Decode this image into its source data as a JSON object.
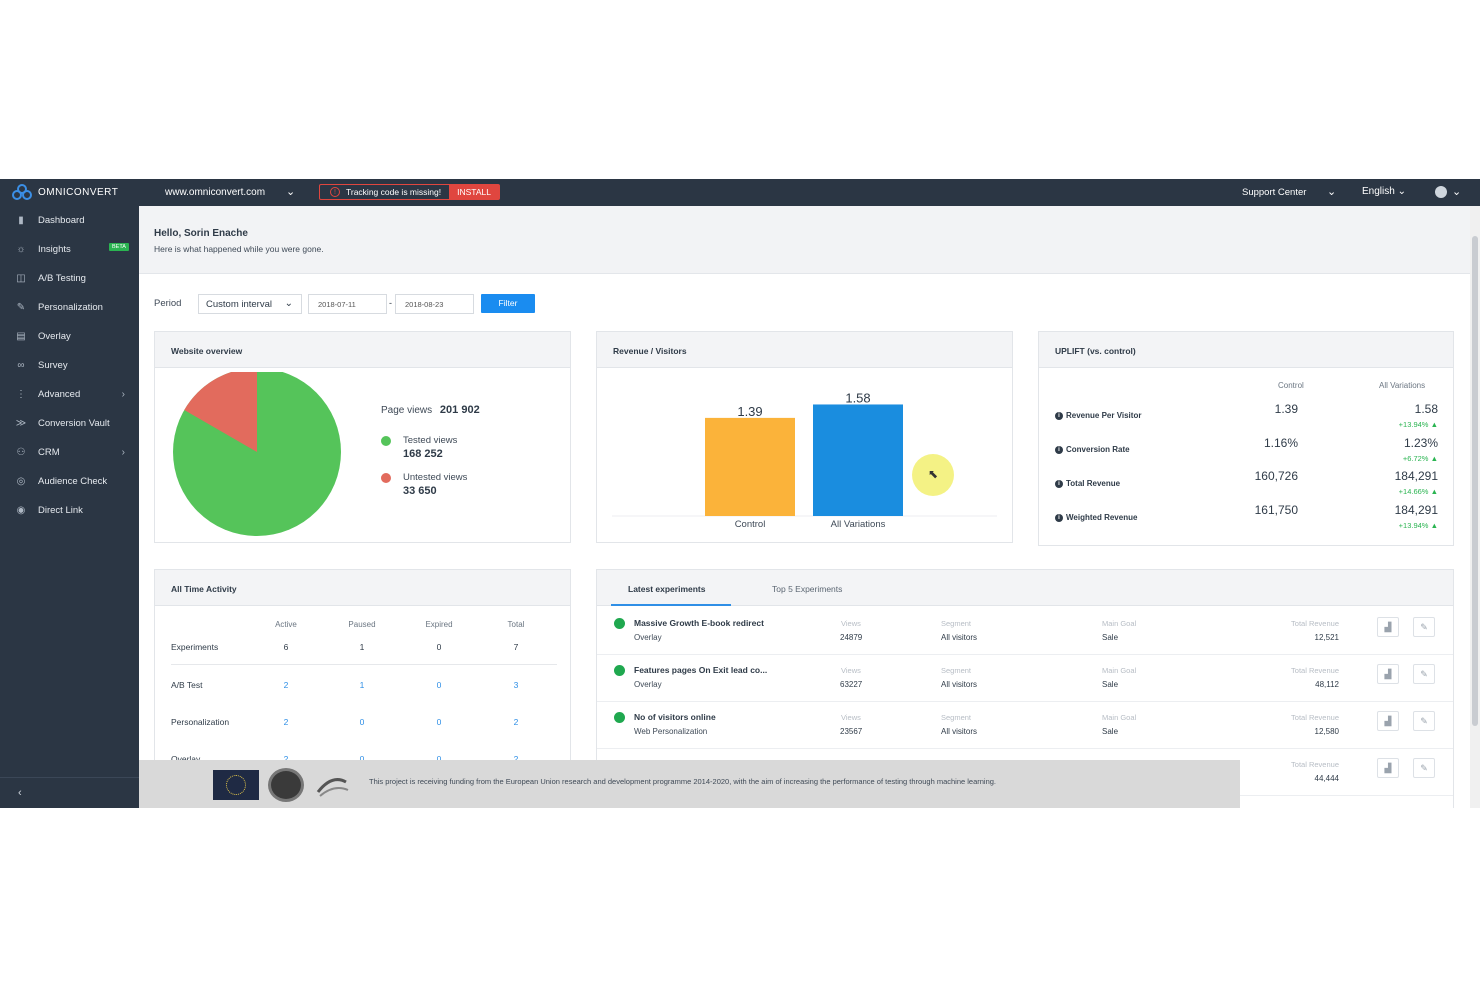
{
  "topbar": {
    "brand": "OMNICONVERT",
    "site": "www.omniconvert.com",
    "tracking_warning": "Tracking code is missing!",
    "install_label": "INSTALL",
    "support": "Support Center",
    "language": "English"
  },
  "sidebar": {
    "items": [
      {
        "label": "Dashboard",
        "icon": "bar-chart-icon"
      },
      {
        "label": "Insights",
        "icon": "lightbulb-icon",
        "badge": "BETA"
      },
      {
        "label": "A/B Testing",
        "icon": "split-window-icon"
      },
      {
        "label": "Personalization",
        "icon": "personalization-icon"
      },
      {
        "label": "Overlay",
        "icon": "overlay-icon"
      },
      {
        "label": "Survey",
        "icon": "survey-icon"
      },
      {
        "label": "Advanced",
        "icon": "more-vertical-icon"
      },
      {
        "label": "Conversion Vault",
        "icon": "vault-icon"
      },
      {
        "label": "CRM",
        "icon": "crm-icon"
      },
      {
        "label": "Audience Check",
        "icon": "audience-icon"
      },
      {
        "label": "Direct Link",
        "icon": "link-icon"
      }
    ],
    "collapse_glyph": "‹"
  },
  "greeting": {
    "hello": "Hello, Sorin Enache",
    "subtitle": "Here is what happened while you were gone."
  },
  "filters": {
    "period_label": "Period",
    "interval": "Custom interval",
    "date_from": "2018-07-11",
    "date_sep": "-",
    "date_to": "2018-08-23",
    "filter_label": "Filter"
  },
  "overview": {
    "title": "Website overview",
    "page_views_label": "Page views",
    "page_views": "201 902",
    "tested_label": "Tested views",
    "tested": "168 252",
    "untested_label": "Untested views",
    "untested": "33 650",
    "colors": {
      "tested": "#55c45a",
      "untested": "#e26b5d"
    }
  },
  "revenue_visitors": {
    "title": "Revenue / Visitors"
  },
  "chart_data": {
    "type": "bar",
    "categories": [
      "Control",
      "All Variations"
    ],
    "values": [
      1.39,
      1.58
    ],
    "data_labels": [
      "1.39",
      "1.58"
    ],
    "colors": [
      "#fbb33a",
      "#1a8ddf"
    ],
    "ylim": [
      0,
      1.7
    ]
  },
  "uplift": {
    "title": "UPLIFT (vs. control)",
    "col_control": "Control",
    "col_variations": "All Variations",
    "rows": [
      {
        "label": "Revenue Per Visitor",
        "control": "1.39",
        "variations": "1.58",
        "uplift": "+13.94%"
      },
      {
        "label": "Conversion Rate",
        "control": "1.16%",
        "variations": "1.23%",
        "uplift": "+6.72%"
      },
      {
        "label": "Total Revenue",
        "control": "160,726",
        "variations": "184,291",
        "uplift": "+14.66%"
      },
      {
        "label": "Weighted Revenue",
        "control": "161,750",
        "variations": "184,291",
        "uplift": "+13.94%"
      }
    ]
  },
  "activity": {
    "title": "All Time Activity",
    "headers": [
      "Active",
      "Paused",
      "Expired",
      "Total"
    ],
    "rows": [
      {
        "label": "Experiments",
        "values": [
          "6",
          "1",
          "0",
          "7"
        ]
      },
      {
        "label": "A/B Test",
        "values": [
          "2",
          "1",
          "0",
          "3"
        ]
      },
      {
        "label": "Personalization",
        "values": [
          "2",
          "0",
          "0",
          "2"
        ]
      },
      {
        "label": "Overlay",
        "values": [
          "2",
          "0",
          "0",
          "2"
        ]
      }
    ]
  },
  "experiments": {
    "tab_latest": "Latest experiments",
    "tab_top": "Top 5 Experiments",
    "col_views": "Views",
    "col_segment": "Segment",
    "col_goal": "Main Goal",
    "col_revenue": "Total Revenue",
    "rows": [
      {
        "name": "Massive Growth E-book redirect",
        "type": "Overlay",
        "views": "24879",
        "segment": "All visitors",
        "goal": "Sale",
        "revenue": "12,521"
      },
      {
        "name": "Features pages On Exit lead co...",
        "type": "Overlay",
        "views": "63227",
        "segment": "All visitors",
        "goal": "Sale",
        "revenue": "48,112"
      },
      {
        "name": "No of visitors online",
        "type": "Web Personalization",
        "views": "23567",
        "segment": "All visitors",
        "goal": "Sale",
        "revenue": "12,580"
      },
      {
        "name": "",
        "type": "",
        "views": "",
        "segment": "",
        "goal": "",
        "revenue": "44,444"
      }
    ]
  },
  "funding": {
    "text": "This project is receiving funding from the European Union research and development programme 2014-2020, with the aim of increasing the performance of testing through machine learning."
  }
}
